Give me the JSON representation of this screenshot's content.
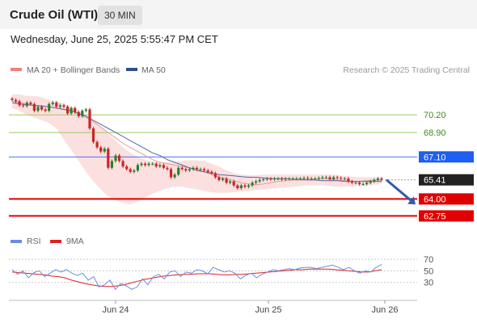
{
  "header": {
    "title": "Crude Oil (WTI)",
    "interval": "30 MIN",
    "datetime": "Wednesday, June 25, 2025 5:55:47 PM CET"
  },
  "legend": {
    "ma20_bb": "MA 20 + Bollinger Bands",
    "ma50": "MA 50",
    "copyright": "Research © 2025 Trading Central",
    "rsi": "RSI",
    "rsi_ma": "9MA"
  },
  "colors": {
    "candle_up": "#2e7d32",
    "candle_down": "#c62828",
    "bollinger_fill": "#fbd4d4",
    "ma20": "#e89a9a",
    "ma50": "#5566aa",
    "resistance": "#4a72e8",
    "resistance_label": "#1e5ef0",
    "target": "#99cc66",
    "target_text": "#3d8b1f",
    "support": "#e00000",
    "current": "#222222",
    "rsi": "#6b8de0",
    "rsi_ma": "#e02020",
    "arrow": "#2f5ea8"
  },
  "chart_data": {
    "type": "candlestick",
    "title": "Crude Oil (WTI)",
    "interval": "30 MIN",
    "x_ticks": [
      "Jun 24",
      "Jun 25",
      "Jun 26"
    ],
    "ylim": [
      62.0,
      72.0
    ],
    "price_levels": [
      {
        "value": 70.2,
        "label": "70.20",
        "kind": "target"
      },
      {
        "value": 68.9,
        "label": "68.90",
        "kind": "target"
      },
      {
        "value": 67.1,
        "label": "67.10",
        "kind": "resistance"
      },
      {
        "value": 65.41,
        "label": "65.41",
        "kind": "current"
      },
      {
        "value": 64.0,
        "label": "64.00",
        "kind": "support"
      },
      {
        "value": 62.75,
        "label": "62.75",
        "kind": "support"
      }
    ],
    "closes": [
      71.3,
      71.2,
      70.9,
      70.85,
      71.1,
      71.0,
      70.5,
      70.8,
      70.6,
      70.5,
      71.0,
      71.1,
      70.8,
      70.9,
      70.8,
      70.3,
      70.7,
      70.4,
      70.1,
      70.5,
      70.6,
      69.2,
      68.2,
      67.8,
      67.5,
      67.7,
      66.3,
      66.8,
      67.2,
      66.8,
      66.4,
      66.2,
      66.0,
      66.1,
      66.5,
      66.6,
      66.5,
      66.6,
      66.6,
      66.4,
      66.5,
      66.3,
      66.2,
      65.6,
      65.8,
      66.3,
      66.2,
      66.1,
      66.2,
      66.3,
      66.2,
      66.2,
      66.1,
      66.0,
      65.9,
      65.6,
      65.4,
      65.5,
      65.2,
      65.3,
      65.0,
      64.8,
      65.0,
      64.9,
      65.0,
      65.2,
      65.3,
      65.4,
      65.45,
      65.5,
      65.45,
      65.5,
      65.5,
      65.45,
      65.5,
      65.5,
      65.5,
      65.5,
      65.5,
      65.55,
      65.5,
      65.5,
      65.5,
      65.55,
      65.6,
      65.6,
      65.45,
      65.6,
      65.55,
      65.5,
      65.5,
      65.3,
      65.2,
      65.2,
      65.1,
      65.1,
      65.2,
      65.3,
      65.4,
      65.5,
      65.41
    ],
    "ma20": [
      71.2,
      71.1,
      71.0,
      70.9,
      70.85,
      70.8,
      70.7,
      70.6,
      70.5,
      70.3,
      70.0,
      69.7,
      69.3,
      68.9,
      68.5,
      68.1,
      67.8,
      67.5,
      67.2,
      66.9,
      66.7,
      66.6,
      66.5,
      66.4,
      66.3,
      66.2,
      66.0,
      65.8,
      65.6,
      65.5,
      65.35,
      65.2,
      65.1,
      65.05,
      65.1,
      65.2,
      65.3,
      65.35,
      65.4,
      65.4,
      65.4,
      65.45,
      65.5,
      65.45,
      65.4,
      65.35,
      65.3,
      65.3,
      65.35,
      65.4,
      65.4
    ],
    "ma50": [
      71.1,
      71.0,
      70.95,
      70.9,
      70.85,
      70.8,
      70.7,
      70.6,
      70.5,
      70.3,
      70.1,
      69.8,
      69.5,
      69.2,
      68.9,
      68.6,
      68.3,
      68.0,
      67.7,
      67.4,
      67.2,
      66.9,
      66.7,
      66.5,
      66.3,
      66.1,
      66.0,
      65.9,
      65.8,
      65.75,
      65.7,
      65.65,
      65.6,
      65.6,
      65.55,
      65.5,
      65.5,
      65.5,
      65.45,
      65.45,
      65.4,
      65.4,
      65.35,
      65.35,
      65.35,
      65.3,
      65.3,
      65.3,
      65.3,
      65.3,
      65.3
    ],
    "bb_upper": [
      71.7,
      71.7,
      71.6,
      71.6,
      71.5,
      71.3,
      71.2,
      71.0,
      70.8,
      70.5,
      70.2,
      69.8,
      69.3,
      68.8,
      68.3,
      67.8,
      67.4,
      67.1,
      66.9,
      66.75,
      66.7,
      66.7,
      66.75,
      66.8,
      66.85,
      66.85,
      66.8,
      66.6,
      66.4,
      66.1,
      65.9,
      65.8,
      65.75,
      65.75,
      65.8,
      65.8,
      65.8,
      65.8,
      65.8,
      65.8,
      65.8,
      65.8,
      65.8,
      65.8,
      65.75,
      65.7,
      65.65,
      65.6,
      65.6,
      65.6,
      65.6
    ],
    "bb_lower": [
      70.7,
      70.5,
      70.2,
      70.0,
      69.8,
      69.6,
      69.2,
      68.4,
      67.6,
      66.8,
      66.0,
      65.3,
      64.7,
      64.2,
      63.9,
      63.7,
      63.6,
      63.8,
      64.1,
      64.4,
      64.6,
      64.8,
      64.9,
      64.9,
      64.8,
      64.7,
      64.6,
      64.5,
      64.45,
      64.45,
      64.5,
      64.55,
      64.6,
      64.65,
      64.7,
      64.75,
      64.8,
      64.85,
      64.9,
      64.95,
      65.0,
      65.0,
      65.0,
      64.95,
      64.9,
      64.9,
      64.9,
      64.95,
      65.0,
      65.05,
      65.1
    ],
    "projection": {
      "from": 65.41,
      "to": 63.6
    },
    "rsi": {
      "ylim": [
        10,
        80
      ],
      "levels": [
        70,
        50,
        30
      ],
      "rsi_values": [
        52,
        44,
        50,
        38,
        47,
        50,
        40,
        46,
        52,
        48,
        52,
        46,
        42,
        46,
        34,
        40,
        22,
        26,
        34,
        18,
        28,
        24,
        18,
        22,
        36,
        26,
        40,
        44,
        36,
        48,
        50,
        40,
        48,
        46,
        52,
        50,
        45,
        56,
        52,
        48,
        50,
        46,
        36,
        42,
        46,
        38,
        44,
        48,
        52,
        50,
        52,
        54,
        52,
        55,
        56,
        56,
        54,
        56,
        58,
        60,
        56,
        52,
        56,
        50,
        46,
        50,
        48,
        56,
        61
      ],
      "rsi_ma_values": [
        48,
        47,
        46,
        45,
        44,
        43,
        41,
        40,
        38,
        34,
        31,
        28,
        26,
        24,
        23,
        23,
        24,
        26,
        29,
        32,
        35,
        37,
        39,
        41,
        42,
        43,
        44,
        44,
        45,
        45,
        45,
        44,
        43,
        43,
        44,
        44,
        45,
        46,
        47,
        48,
        49,
        50,
        51,
        52,
        52,
        53,
        53,
        53,
        53,
        52,
        51,
        50,
        49,
        48,
        48,
        50,
        52
      ]
    }
  }
}
